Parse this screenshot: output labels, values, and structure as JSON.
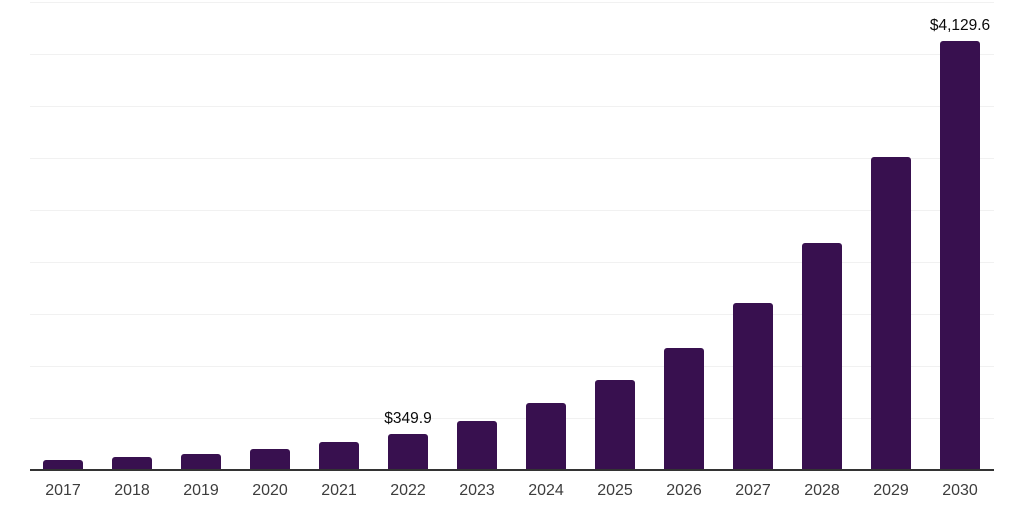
{
  "chart_data": {
    "type": "bar",
    "title": "",
    "xlabel": "",
    "ylabel": "",
    "categories": [
      "2017",
      "2018",
      "2019",
      "2020",
      "2021",
      "2022",
      "2023",
      "2024",
      "2025",
      "2026",
      "2027",
      "2028",
      "2029",
      "2030"
    ],
    "values": [
      100,
      122,
      150,
      200,
      270,
      349.9,
      475,
      640,
      870,
      1175,
      1605,
      2185,
      3005,
      4129.6
    ],
    "value_labels": {
      "2022": "$349.9",
      "2030": "$4,129.6"
    },
    "ylim": [
      0,
      4500
    ],
    "gridline_step": 500,
    "grid": true,
    "legend": false,
    "y_axis_tick_labels_visible": false,
    "colors": {
      "bar": "#38104F",
      "gridline": "#f1f1f1",
      "axis_line": "#333333",
      "tick_label": "#3d3d3d",
      "value_label": "#0a0a0a"
    }
  }
}
